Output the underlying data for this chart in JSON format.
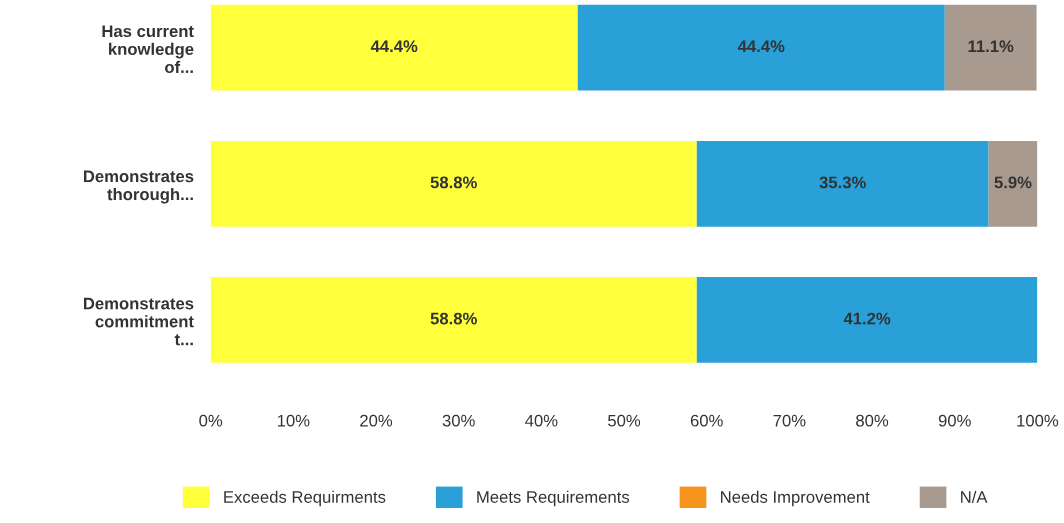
{
  "chart_data": {
    "type": "bar",
    "orientation": "horizontal",
    "stacked": true,
    "categories": [
      "Has current\nknowledge\nof...",
      "Demonstrates\nthorough...",
      "Demonstrates\ncommitment\nt..."
    ],
    "series": [
      {
        "name": "Exceeds Requirments",
        "color": "#ffff3c",
        "values": [
          44.4,
          58.8,
          58.8
        ],
        "value_labels": [
          "44.4%",
          "58.8%",
          "58.8%"
        ]
      },
      {
        "name": "Meets Requirements",
        "color": "#2aa0d8",
        "values": [
          44.4,
          35.3,
          41.2
        ],
        "value_labels": [
          "44.4%",
          "35.3%",
          "41.2%"
        ]
      },
      {
        "name": "Needs Improvement",
        "color": "#f7941d",
        "values": [
          0,
          0,
          0
        ],
        "value_labels": [
          null,
          null,
          null
        ]
      },
      {
        "name": "N/A",
        "color": "#a89a8f",
        "values": [
          11.1,
          5.9,
          0
        ],
        "value_labels": [
          "11.1%",
          "5.9%",
          null
        ]
      }
    ],
    "xlim": [
      0,
      100
    ],
    "xticks": [
      {
        "value": 0,
        "label": "0%"
      },
      {
        "value": 10,
        "label": "10%"
      },
      {
        "value": 20,
        "label": "20%"
      },
      {
        "value": 30,
        "label": "30%"
      },
      {
        "value": 40,
        "label": "40%"
      },
      {
        "value": 50,
        "label": "50%"
      },
      {
        "value": 60,
        "label": "60%"
      },
      {
        "value": 70,
        "label": "70%"
      },
      {
        "value": 80,
        "label": "80%"
      },
      {
        "value": 90,
        "label": "90%"
      },
      {
        "value": 100,
        "label": "100%"
      }
    ],
    "grid": false,
    "legend": "bottom"
  }
}
